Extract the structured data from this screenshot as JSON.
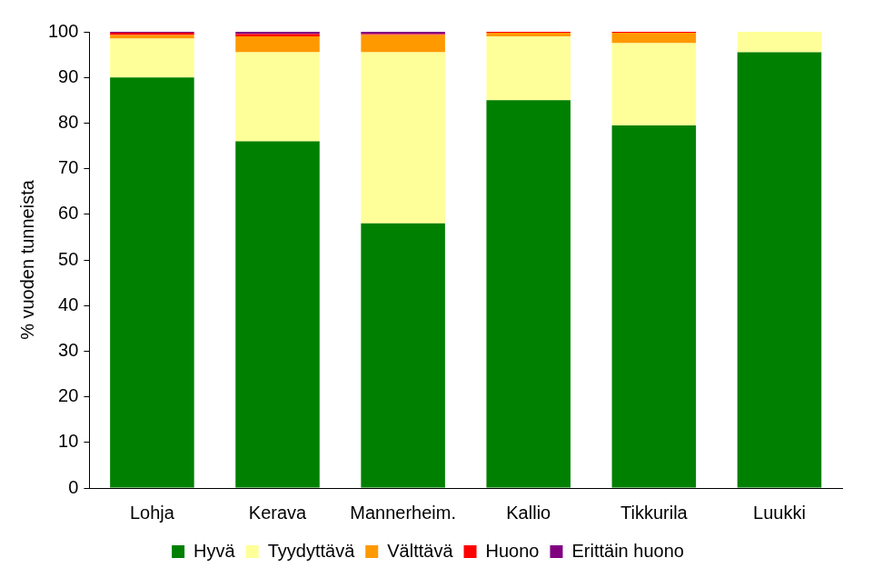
{
  "chart_data": {
    "type": "bar",
    "y_label": "% vuoden tunneista",
    "categories": [
      "Lohja",
      "Kerava",
      "Mannerheim.",
      "Kallio",
      "Tikkurila",
      "Luukki"
    ],
    "series": [
      {
        "name": "Hyvä",
        "color": "#008000",
        "values": [
          90,
          76,
          58,
          85,
          79.5,
          95.5
        ]
      },
      {
        "name": "Tyydyttävä",
        "color": "#ffff99",
        "values": [
          8.5,
          19.5,
          37.5,
          14,
          18,
          4.5
        ]
      },
      {
        "name": "Välttävä",
        "color": "#ff9900",
        "values": [
          0.8,
          3.5,
          3.8,
          0.8,
          2.3,
          0
        ]
      },
      {
        "name": "Huono",
        "color": "#ff0000",
        "values": [
          0.5,
          0.5,
          0.2,
          0.2,
          0.2,
          0
        ]
      },
      {
        "name": "Erittäin huono",
        "color": "#800080",
        "values": [
          0.2,
          0.5,
          0.5,
          0,
          0,
          0
        ]
      }
    ],
    "ylim": [
      0,
      100
    ],
    "yticks": [
      0,
      10,
      20,
      30,
      40,
      50,
      60,
      70,
      80,
      90,
      100
    ],
    "stacked": true,
    "grid": false,
    "legend": "bottom"
  }
}
